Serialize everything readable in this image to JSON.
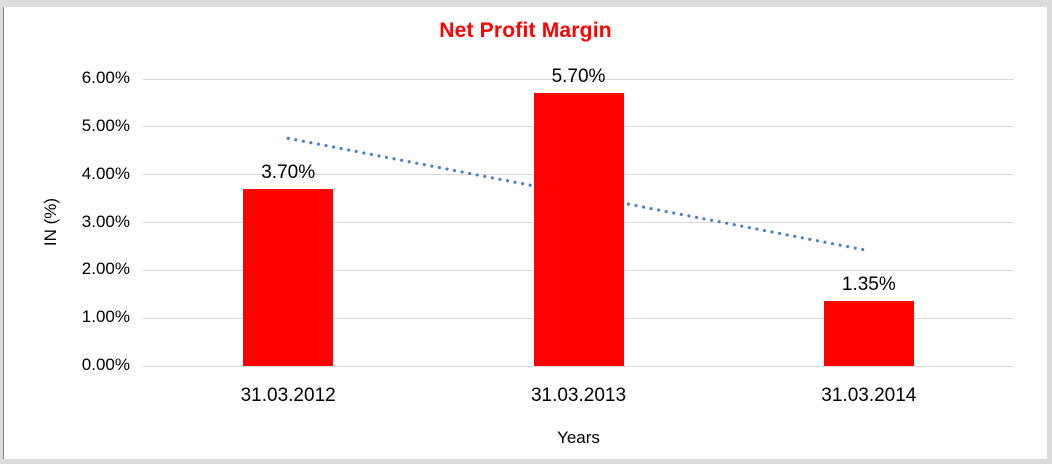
{
  "frame": {
    "background_color": "#dcdcdc",
    "left_edge_line_color": "#808080"
  },
  "chart_data": {
    "type": "bar",
    "title": "Net Profit Margin",
    "title_color": "#ff0000",
    "xlabel": "Years",
    "ylabel": "IN (%)",
    "categories": [
      "31.03.2012",
      "31.03.2013",
      "31.03.2014"
    ],
    "values": [
      3.7,
      5.7,
      1.35
    ],
    "value_labels": [
      "3.70%",
      "5.70%",
      "1.35%"
    ],
    "bar_color": "#ff0000",
    "ylim": [
      0,
      6
    ],
    "ytick_values": [
      0,
      1,
      2,
      3,
      4,
      5,
      6
    ],
    "ytick_labels": [
      "0.00%",
      "1.00%",
      "2.00%",
      "3.00%",
      "4.00%",
      "5.00%",
      "6.00%"
    ],
    "gridline_color": "#d9d9d9",
    "grid": "horizontal",
    "legend": "none",
    "trendline": {
      "type": "linear",
      "style": "dotted",
      "color": "#4f81bd",
      "start_value": 4.76,
      "end_value": 2.41
    }
  }
}
